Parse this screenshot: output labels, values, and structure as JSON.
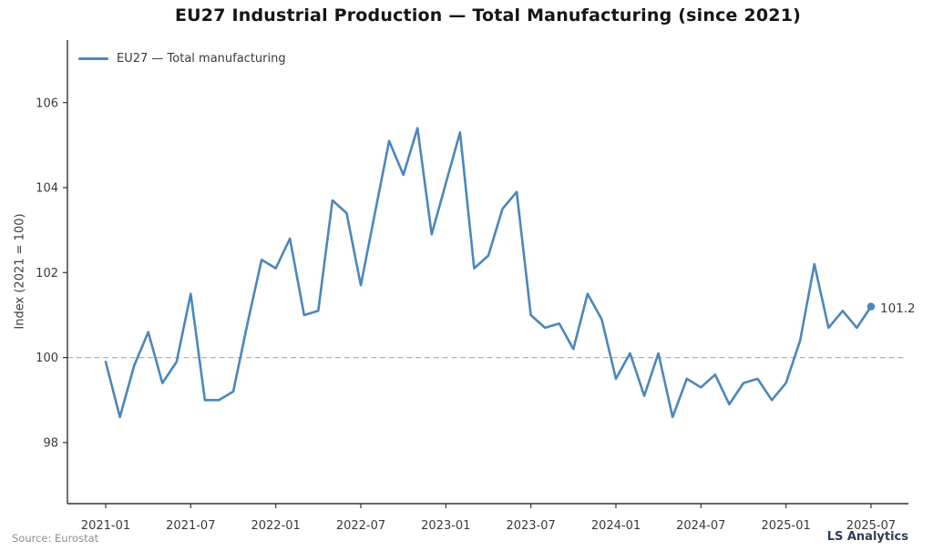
{
  "footer": {
    "source": "Source: Eurostat",
    "brand": "LS Analytics"
  },
  "colors": {
    "line": "#4b87bb",
    "refline": "#b3b3b3",
    "axis": "#333333",
    "tick_label": "#3a3a3a",
    "title": "#151515",
    "annotation": "#3d3d3d",
    "source": "#8e8e8e",
    "brand": "#2e3d59"
  },
  "chart_data": {
    "type": "line",
    "title": "EU27 Industrial Production — Total Manufacturing (since 2021)",
    "xlabel": "",
    "ylabel": "Index (2021 = 100)",
    "legend_position": "upper left",
    "grid": false,
    "refline_y": 100,
    "ylim": [
      96.5,
      107.5
    ],
    "yticks": [
      98,
      100,
      102,
      104,
      106
    ],
    "xticks": [
      "2021-01",
      "2021-07",
      "2022-01",
      "2022-07",
      "2023-01",
      "2023-07",
      "2024-01",
      "2024-07",
      "2025-01",
      "2025-07"
    ],
    "x": [
      "2021-01",
      "2021-02",
      "2021-03",
      "2021-04",
      "2021-05",
      "2021-06",
      "2021-07",
      "2021-08",
      "2021-09",
      "2021-10",
      "2021-11",
      "2021-12",
      "2022-01",
      "2022-02",
      "2022-03",
      "2022-04",
      "2022-05",
      "2022-06",
      "2022-07",
      "2022-08",
      "2022-09",
      "2022-10",
      "2022-11",
      "2022-12",
      "2023-01",
      "2023-02",
      "2023-03",
      "2023-04",
      "2023-05",
      "2023-06",
      "2023-07",
      "2023-08",
      "2023-09",
      "2023-10",
      "2023-11",
      "2023-12",
      "2024-01",
      "2024-02",
      "2024-03",
      "2024-04",
      "2024-05",
      "2024-06",
      "2024-07",
      "2024-08",
      "2024-09",
      "2024-10",
      "2024-11",
      "2024-12",
      "2025-01",
      "2025-02",
      "2025-03",
      "2025-04",
      "2025-05",
      "2025-06",
      "2025-07"
    ],
    "series": [
      {
        "name": "EU27 — Total manufacturing",
        "values": [
          99.9,
          98.6,
          99.8,
          100.6,
          99.4,
          99.9,
          101.5,
          99.0,
          99.0,
          99.2,
          100.8,
          102.3,
          102.1,
          102.8,
          101.0,
          101.1,
          103.7,
          103.4,
          101.7,
          103.4,
          105.1,
          104.3,
          105.4,
          102.9,
          104.1,
          105.3,
          102.1,
          102.4,
          103.5,
          103.9,
          101.0,
          100.7,
          100.8,
          100.2,
          101.5,
          100.9,
          99.5,
          100.1,
          99.1,
          100.1,
          98.6,
          99.5,
          99.3,
          99.6,
          98.9,
          99.4,
          99.5,
          99.0,
          99.4,
          100.4,
          102.2,
          100.7,
          101.1,
          100.7,
          101.2
        ]
      }
    ],
    "last_point_label": "101.2"
  }
}
